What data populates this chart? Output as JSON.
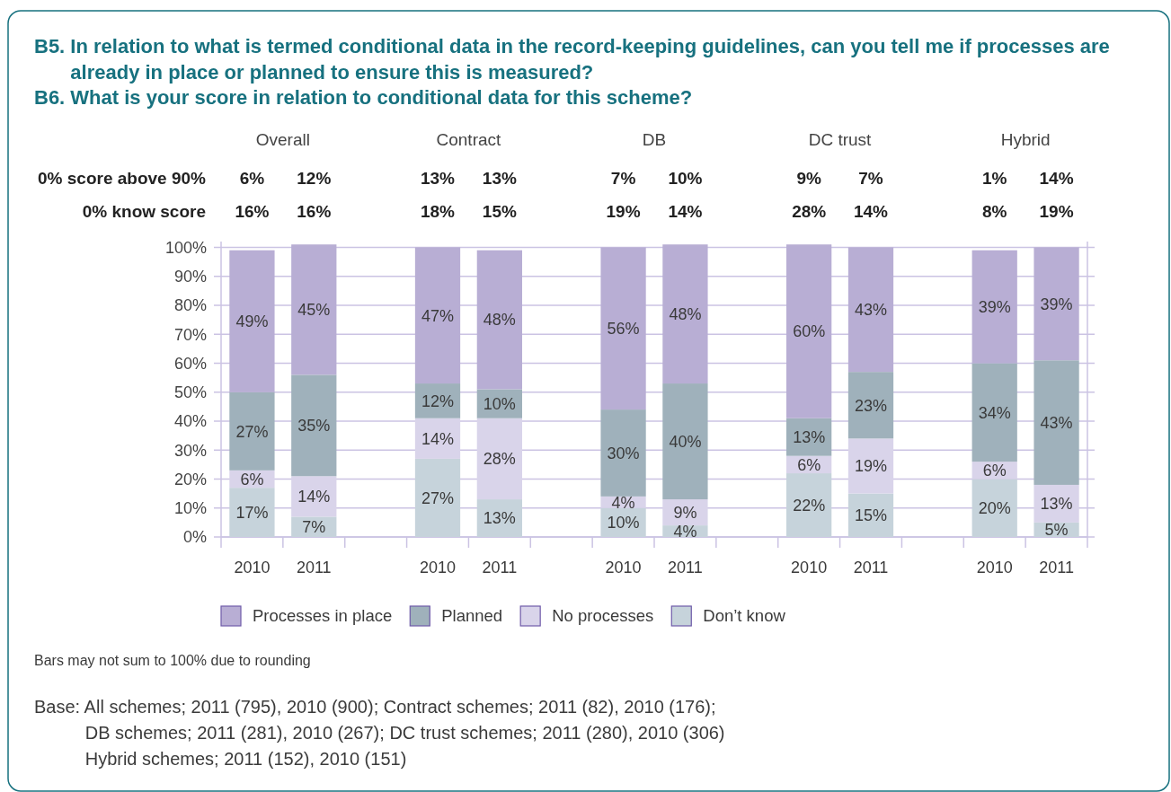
{
  "chart_data": [
    {
      "type": "heatmap",
      "title": "B5. In relation to what is termed conditional data in the record-keeping guidelines, can you tell me if processes are already in place or planned to ensure this is measured?",
      "subtitle": "B6. What is your score in relation to conditional data for this scheme?",
      "annotations": [
        "Overall",
        "Contract",
        "DB",
        "DC trust",
        "Hybrid"
      ],
      "categories": [
        "2010",
        "2011",
        null,
        "2010",
        "2011",
        null,
        "2010",
        "2011",
        null,
        "2010",
        "2011",
        null,
        "2010",
        "2011"
      ],
      "y_categories": [
        "0% score above 90%",
        "0% know score"
      ],
      "cells": [
        [
          6,
          12,
          null,
          13,
          13,
          null,
          7,
          10,
          null,
          9,
          7,
          null,
          1,
          14
        ],
        [
          16,
          16,
          null,
          18,
          15,
          null,
          19,
          14,
          null,
          28,
          14,
          null,
          8,
          19
        ]
      ],
      "cell_labels": [
        [
          "6%",
          "12%",
          null,
          "13%",
          "13%",
          null,
          "7%",
          "10%",
          null,
          "9%",
          "7%",
          null,
          "1%",
          "14%"
        ],
        [
          "16%",
          "16%",
          null,
          "18%",
          "15%",
          null,
          "19%",
          "14%",
          null,
          "28%",
          "14%",
          null,
          "8%",
          "19%"
        ]
      ],
      "tick_labels": "y"
    },
    {
      "type": "bar",
      "stacked": true,
      "categories": [
        "2010",
        "2011",
        null,
        "2010",
        "2011",
        null,
        "2010",
        "2011",
        null,
        "2010",
        "2011",
        null,
        "2010",
        "2011"
      ],
      "series": [
        {
          "name": "Don’t know",
          "color": "#c6d3db",
          "values": [
            17,
            7,
            null,
            27,
            13,
            null,
            10,
            4,
            null,
            22,
            15,
            null,
            20,
            5
          ],
          "value_labels": [
            "17%",
            "7%",
            null,
            "27%",
            "13%",
            null,
            "10%",
            "4%",
            null,
            "22%",
            "15%",
            null,
            "20%",
            "5%"
          ]
        },
        {
          "name": "No processes",
          "color": "#d9d4ea",
          "values": [
            6,
            14,
            null,
            14,
            28,
            null,
            4,
            9,
            null,
            6,
            19,
            null,
            6,
            13
          ],
          "value_labels": [
            "6%",
            "14%",
            null,
            "14%",
            "28%",
            null,
            "4%",
            "9%",
            null,
            "6%",
            "19%",
            null,
            "6%",
            "13%"
          ]
        },
        {
          "name": "Planned",
          "color": "#9fb1bb",
          "values": [
            27,
            35,
            null,
            12,
            10,
            null,
            30,
            40,
            null,
            13,
            23,
            null,
            34,
            43
          ],
          "value_labels": [
            "27%",
            "35%",
            null,
            "12%",
            "10%",
            null,
            "30%",
            "40%",
            null,
            "13%",
            "23%",
            null,
            "34%",
            "43%"
          ]
        },
        {
          "name": "Processes in place",
          "color": "#b8aed4",
          "values": [
            49,
            45,
            null,
            47,
            48,
            null,
            56,
            48,
            null,
            60,
            43,
            null,
            39,
            39
          ],
          "value_labels": [
            "49%",
            "45%",
            null,
            "47%",
            "48%",
            null,
            "56%",
            "48%",
            null,
            "60%",
            "43%",
            null,
            "39%",
            "39%"
          ]
        }
      ],
      "ylim": [
        0,
        102
      ],
      "yticks": [
        {
          "value": 0,
          "label": "0%"
        },
        {
          "value": 10,
          "label": "10%"
        },
        {
          "value": 20,
          "label": "20%"
        },
        {
          "value": 30,
          "label": "30%"
        },
        {
          "value": 40,
          "label": "40%"
        },
        {
          "value": 50,
          "label": "50%"
        },
        {
          "value": 60,
          "label": "60%"
        },
        {
          "value": 70,
          "label": "70%"
        },
        {
          "value": 80,
          "label": "80%"
        },
        {
          "value": 90,
          "label": "90%"
        },
        {
          "value": 100,
          "label": "100%"
        }
      ],
      "grid": "y",
      "legend": "bottom",
      "annotations": [
        "Bars may not sum to 100% due to rounding",
        "Base: All schemes; 2011 (795), 2010 (900); Contract schemes; 2011 (82), 2010 (176);\nDB schemes; 2011 (281), 2010 (267); DC trust schemes; 2011 (280), 2010 (306)\nHybrid schemes; 2011 (152), 2010 (151)"
      ]
    }
  ]
}
